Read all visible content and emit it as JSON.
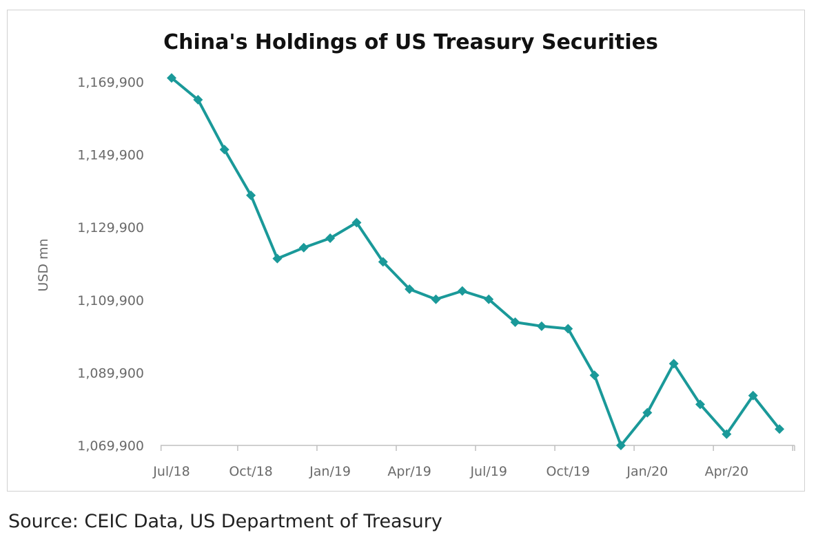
{
  "chart_data": {
    "type": "line",
    "title": "China's Holdings of US Treasury Securities",
    "xlabel": "",
    "ylabel": "USD mn",
    "ylim": [
      1069900,
      1169900
    ],
    "yticks": [
      1069900,
      1089900,
      1109900,
      1129900,
      1149900,
      1169900
    ],
    "ytick_labels": [
      "1,069,900",
      "1,089,900",
      "1,109,900",
      "1,129,900",
      "1,149,900",
      "1,169,900"
    ],
    "x": [
      "Jul/18",
      "Aug/18",
      "Sep/18",
      "Oct/18",
      "Nov/18",
      "Dec/18",
      "Jan/19",
      "Feb/19",
      "Mar/19",
      "Apr/19",
      "May/19",
      "Jun/19",
      "Jul/19",
      "Aug/19",
      "Sep/19",
      "Oct/19",
      "Nov/19",
      "Dec/19",
      "Jan/20",
      "Feb/20",
      "Mar/20",
      "Apr/20",
      "May/20",
      "Jun/20"
    ],
    "xtick_labels": [
      "Jul/18",
      "Oct/18",
      "Jan/19",
      "Apr/19",
      "Jul/19",
      "Oct/19",
      "Jan/20",
      "Apr/20"
    ],
    "xtick_indices": [
      0,
      3,
      6,
      9,
      12,
      15,
      18,
      21
    ],
    "series": [
      {
        "values": [
          1171000,
          1165000,
          1151300,
          1138700,
          1121300,
          1124300,
          1126900,
          1131200,
          1120400,
          1112900,
          1110100,
          1112400,
          1110100,
          1103800,
          1102700,
          1102000,
          1089200,
          1069900,
          1078900,
          1092400,
          1081200,
          1073000,
          1083600,
          1074400
        ],
        "color": "#1a9999"
      }
    ],
    "grid": false,
    "legend": "none"
  },
  "source_note": "Source: CEIC Data, US Department of Treasury"
}
